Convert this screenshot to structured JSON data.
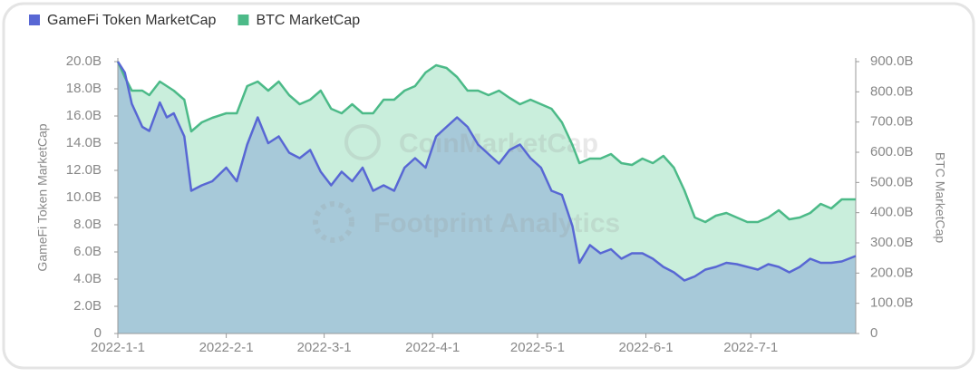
{
  "chart_data": {
    "type": "area",
    "y_axis_label": "GameFi Token MarketCap",
    "y2_axis_label": "BTC MarketCap",
    "watermarks": [
      "CoinMarketCap",
      "Footprint Analytics"
    ],
    "legend": "top-left",
    "x": [
      "2022-01-01",
      "2022-01-03",
      "2022-01-05",
      "2022-01-08",
      "2022-01-10",
      "2022-01-13",
      "2022-01-15",
      "2022-01-17",
      "2022-01-20",
      "2022-01-22",
      "2022-01-25",
      "2022-01-28",
      "2022-02-01",
      "2022-02-04",
      "2022-02-07",
      "2022-02-10",
      "2022-02-13",
      "2022-02-16",
      "2022-02-19",
      "2022-02-22",
      "2022-02-25",
      "2022-02-28",
      "2022-03-03",
      "2022-03-06",
      "2022-03-09",
      "2022-03-12",
      "2022-03-15",
      "2022-03-18",
      "2022-03-21",
      "2022-03-24",
      "2022-03-27",
      "2022-03-30",
      "2022-04-02",
      "2022-04-05",
      "2022-04-08",
      "2022-04-11",
      "2022-04-14",
      "2022-04-17",
      "2022-04-20",
      "2022-04-23",
      "2022-04-26",
      "2022-04-29",
      "2022-05-02",
      "2022-05-05",
      "2022-05-08",
      "2022-05-11",
      "2022-05-13",
      "2022-05-16",
      "2022-05-19",
      "2022-05-22",
      "2022-05-25",
      "2022-05-28",
      "2022-05-31",
      "2022-06-03",
      "2022-06-06",
      "2022-06-09",
      "2022-06-12",
      "2022-06-15",
      "2022-06-18",
      "2022-06-21",
      "2022-06-24",
      "2022-06-27",
      "2022-06-30",
      "2022-07-03",
      "2022-07-06",
      "2022-07-09",
      "2022-07-12",
      "2022-07-15",
      "2022-07-18",
      "2022-07-21",
      "2022-07-24",
      "2022-07-27",
      "2022-07-31"
    ],
    "series": [
      {
        "name": "GameFi Token MarketCap",
        "color": "#5867d4",
        "fill": "#a7c9d9",
        "axis": "y",
        "values": [
          20,
          19.2,
          16.9,
          15.2,
          14.9,
          17,
          15.9,
          16.2,
          14.5,
          10.5,
          10.9,
          11.2,
          12.2,
          11.2,
          13.9,
          15.9,
          14,
          14.5,
          13.3,
          12.9,
          13.5,
          11.9,
          10.9,
          11.9,
          11.2,
          12.2,
          10.5,
          10.9,
          10.5,
          12.2,
          12.9,
          12.2,
          14.5,
          15.2,
          15.9,
          15.2,
          13.9,
          13.2,
          12.5,
          13.5,
          13.9,
          12.9,
          12.2,
          10.5,
          10.2,
          7.9,
          5.2,
          6.5,
          5.9,
          6.2,
          5.5,
          5.9,
          5.9,
          5.5,
          4.9,
          4.5,
          3.9,
          4.2,
          4.7,
          4.9,
          5.2,
          5.1,
          4.9,
          4.7,
          5.1,
          4.9,
          4.5,
          4.9,
          5.5,
          5.2,
          5.2,
          5.3,
          5.7
        ]
      },
      {
        "name": "BTC MarketCap",
        "color": "#4cba88",
        "fill": "#c9eedc",
        "axis": "y2",
        "values": [
          900,
          849,
          804,
          804,
          789,
          834,
          819,
          804,
          774,
          669,
          699,
          714,
          729,
          729,
          819,
          834,
          804,
          834,
          789,
          759,
          774,
          804,
          744,
          729,
          759,
          729,
          729,
          774,
          774,
          804,
          819,
          864,
          888,
          879,
          849,
          804,
          804,
          789,
          804,
          780,
          759,
          774,
          759,
          744,
          699,
          624,
          564,
          579,
          579,
          594,
          564,
          558,
          579,
          564,
          588,
          549,
          474,
          384,
          369,
          390,
          399,
          384,
          369,
          369,
          384,
          408,
          378,
          384,
          399,
          429,
          414,
          444,
          444
        ]
      }
    ],
    "xlim": [
      "2022-01-01",
      "2022-07-31"
    ],
    "xticks": [
      {
        "value": "2022-01-01",
        "label": "2022-1-1"
      },
      {
        "value": "2022-02-01",
        "label": "2022-2-1"
      },
      {
        "value": "2022-03-01",
        "label": "2022-3-1"
      },
      {
        "value": "2022-04-01",
        "label": "2022-4-1"
      },
      {
        "value": "2022-05-01",
        "label": "2022-5-1"
      },
      {
        "value": "2022-06-01",
        "label": "2022-6-1"
      },
      {
        "value": "2022-07-01",
        "label": "2022-7-1"
      }
    ],
    "ylim": [
      0,
      20
    ],
    "yticks": [
      0,
      {
        "value": 2,
        "label": "2.0B"
      },
      {
        "value": 4,
        "label": "4.0B"
      },
      {
        "value": 6,
        "label": "6.0B"
      },
      {
        "value": 8,
        "label": "8.0B"
      },
      {
        "value": 10,
        "label": "10.0B"
      },
      {
        "value": 12,
        "label": "12.0B"
      },
      {
        "value": 14,
        "label": "14.0B"
      },
      {
        "value": 16,
        "label": "16.0B"
      },
      {
        "value": 18,
        "label": "18.0B"
      },
      {
        "value": 20,
        "label": "20.0B"
      }
    ],
    "y2lim": [
      0,
      900
    ],
    "y2ticks": [
      0,
      {
        "value": 100,
        "label": "100.0B"
      },
      {
        "value": 200,
        "label": "200.0B"
      },
      {
        "value": 300,
        "label": "300.0B"
      },
      {
        "value": 400,
        "label": "400.0B"
      },
      {
        "value": 500,
        "label": "500.0B"
      },
      {
        "value": 600,
        "label": "600.0B"
      },
      {
        "value": 700,
        "label": "700.0B"
      },
      {
        "value": 800,
        "label": "800.0B"
      },
      {
        "value": 900,
        "label": "900.0B"
      }
    ]
  }
}
